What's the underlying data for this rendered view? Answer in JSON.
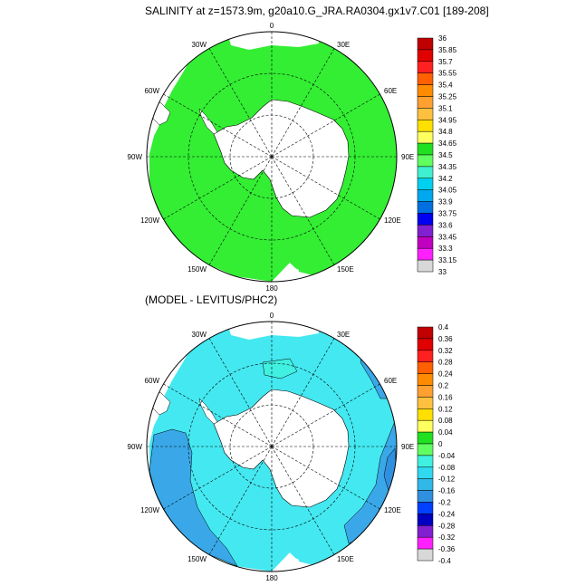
{
  "top_panel": {
    "title": "SALINITY at z=1573.9m, g20a10.G_JRA.RA0304.gx1v7.C01 [189-208]",
    "longitude_labels": [
      "0",
      "30E",
      "60E",
      "90E",
      "120E",
      "150E",
      "180",
      "150W",
      "120W",
      "90W",
      "60W",
      "30W"
    ],
    "colorbar": {
      "levels": [
        "36",
        "35.85",
        "35.7",
        "35.55",
        "35.4",
        "35.25",
        "35.1",
        "34.95",
        "34.8",
        "34.65",
        "34.5",
        "34.35",
        "34.2",
        "34.05",
        "33.9",
        "33.75",
        "33.6",
        "33.45",
        "33.3",
        "33.15",
        "33"
      ],
      "colors": [
        "#c00000",
        "#e00000",
        "#ff2020",
        "#ff6000",
        "#ff8c00",
        "#ffa030",
        "#ffc040",
        "#ffe000",
        "#ffff60",
        "#20e020",
        "#60ff60",
        "#40f0d0",
        "#00d0f0",
        "#00a8f0",
        "#0070e0",
        "#0000f0",
        "#8020d0",
        "#c000c0",
        "#ff20ff",
        "#d8d8d8"
      ],
      "highlight_colors": {
        "field": "#33ee33",
        "land": "#ffffff",
        "field_edge": "#00c000"
      }
    }
  },
  "bottom_panel": {
    "title": "(MODEL - LEVITUS/PHC2)",
    "longitude_labels": [
      "0",
      "30E",
      "60E",
      "90E",
      "120E",
      "150E",
      "180",
      "150W",
      "120W",
      "90W",
      "60W",
      "30W"
    ],
    "colorbar": {
      "levels": [
        "0.4",
        "0.36",
        "0.32",
        "0.28",
        "0.24",
        "0.2",
        "0.16",
        "0.12",
        "0.08",
        "0.04",
        "0",
        "-0.04",
        "-0.08",
        "-0.12",
        "-0.16",
        "-0.2",
        "-0.24",
        "-0.28",
        "-0.32",
        "-0.36",
        "-0.4"
      ],
      "colors": [
        "#c00000",
        "#e00000",
        "#ff2020",
        "#ff6000",
        "#ff8c00",
        "#ffa030",
        "#ffc040",
        "#ffe000",
        "#ffff60",
        "#20e020",
        "#60ff60",
        "#40f0e0",
        "#30d8f0",
        "#30b8e8",
        "#3090e0",
        "#0040ff",
        "#0000c0",
        "#8020d0",
        "#ff20ff",
        "#d8d8d8"
      ],
      "highlight_colors": {
        "field": "#44e8f0",
        "field_dark": "#3aa8e8",
        "land": "#ffffff"
      }
    }
  }
}
